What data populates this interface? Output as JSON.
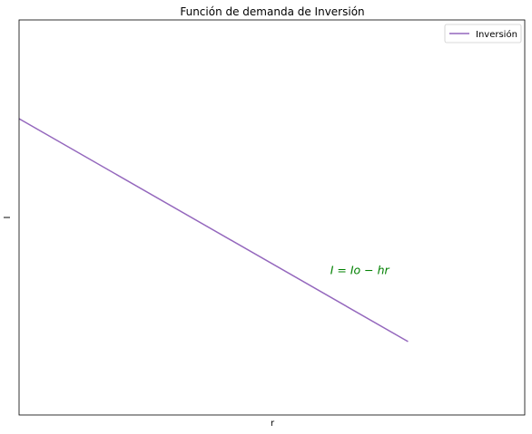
{
  "chart_data": {
    "type": "line",
    "title": "Función de demanda de Inversión",
    "xlabel": "r",
    "ylabel": "I",
    "xlim": [
      0,
      13
    ],
    "ylim": [
      0,
      14
    ],
    "xticks": [],
    "yticks": [],
    "grid": false,
    "legend_position": "upper-right",
    "series": [
      {
        "name": "Inversión",
        "color": "#9467bd",
        "x": [
          0,
          10
        ],
        "y": [
          10.5,
          2.6
        ]
      }
    ],
    "annotations": [
      {
        "text": "I = Io − hr",
        "x": 8,
        "y": 5,
        "color": "#008000"
      }
    ]
  }
}
